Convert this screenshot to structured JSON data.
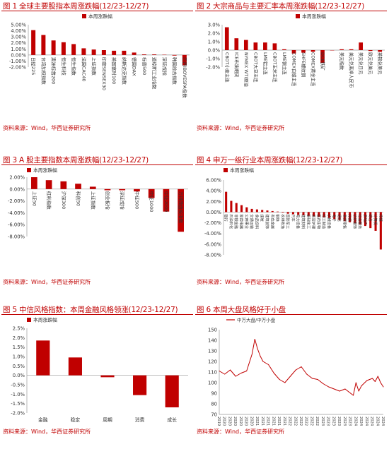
{
  "source_label": "资料来源：Wind，华西证券研究所",
  "colors": {
    "bar": "#c00000",
    "title": "#c00000",
    "line": "#c00000",
    "axis": "#999999"
  },
  "charts": [
    {
      "title": "图 1 全球主要股指本周涨跌幅(12/23-12/27)",
      "chart_data": {
        "type": "bar",
        "legend": "本周涨跌幅",
        "legend_position": "top-center",
        "ylim": [
          -2.0,
          5.0
        ],
        "ytick_step": 1.0,
        "ytick_format": "pct2",
        "categories": [
          "日经225",
          "台湾加权指数",
          "澳洲标普200",
          "恒生科技",
          "恒生指数",
          "法国CAC40",
          "上证指数",
          "印度SENSEX30",
          "英国富时100",
          "纳斯达克指数",
          "德国DAX",
          "标普500",
          "道琼斯工业指数",
          "深证成指",
          "韩国综合指数",
          "巴西IBOVESPA指数"
        ],
        "values": [
          4.1,
          3.3,
          2.4,
          2.1,
          1.8,
          1.1,
          0.9,
          0.8,
          0.7,
          0.7,
          0.4,
          0.1,
          0.1,
          0.05,
          -0.1,
          -1.7
        ]
      }
    },
    {
      "title": "图 2 大宗商品与主要汇率本周涨跌幅(12/23-12/27)",
      "chart_data": {
        "type": "bar",
        "legend": "本周涨跌幅",
        "legend_position": "top-right",
        "ylim": [
          -2.0,
          3.0
        ],
        "ytick_step": 1.0,
        "ytick_format": "pct1",
        "categories": [
          "CBOT小麦主连",
          "ICE布油期货",
          "NYMEX WTI原油",
          "CBOT大豆主连",
          "LME铝主连",
          "CBOT玉米主连",
          "LME铜主连",
          "COMEX白银主连",
          "SHFE螺纹钢",
          "COMEX黄金主连",
          "DCE铁矿",
          "",
          "美元指数",
          "美元兑离岸人民币",
          "美元兑日元",
          "欧元兑美元",
          "英镑兑美元"
        ],
        "values": [
          2.7,
          1.4,
          1.2,
          0.9,
          0.9,
          0.8,
          0.1,
          -0.4,
          -0.3,
          -0.2,
          -1.5,
          0,
          0.1,
          0.1,
          0.9,
          -0.1,
          -0.2
        ]
      }
    },
    {
      "title": "图 3 A 股主要指数本周涨跌幅(12/23-12/27)",
      "chart_data": {
        "type": "bar",
        "legend": "本周涨跌幅",
        "legend_position": "top-left",
        "ylim": [
          -8.0,
          2.0
        ],
        "ytick_step": 2.0,
        "ytick_format": "pct2",
        "categories": [
          "上证50",
          "红利指数",
          "沪深300",
          "科创50",
          "上证指数",
          "创业板指",
          "深证成指",
          "中证500",
          "中证1000",
          "中证2000",
          "万得微盘股指数"
        ],
        "values": [
          2.0,
          1.5,
          1.3,
          0.9,
          0.4,
          -0.2,
          -0.2,
          -0.4,
          -1.5,
          -3.8,
          -7.2
        ]
      }
    },
    {
      "title": "图 4 申万一级行业本周涨跌幅(12/23-12/27)",
      "chart_data": {
        "type": "bar",
        "legend": "本周涨跌幅",
        "legend_position": "top-left",
        "ylim": [
          -8.0,
          6.0
        ],
        "ytick_step": 2.0,
        "ytick_format": "pct2",
        "categories": [
          "银行",
          "石油石化",
          "非银金融",
          "家用电器",
          "公用事业",
          "交通运输",
          "食品饮料",
          "煤炭",
          "建筑装饰",
          "有色金属",
          "钢铁",
          "农林牧渔",
          "国防军工",
          "汽车",
          "电力设备",
          "建筑材料",
          "基础化工",
          "美容护理",
          "医药生物",
          "轻工制造",
          "机械设备",
          "电子",
          "通信",
          "商贸零售",
          "环保",
          "纺织服饰",
          "社会服务",
          "房地产",
          "综合",
          "计算机",
          "传媒"
        ],
        "values": [
          3.8,
          2.1,
          1.7,
          1.3,
          0.9,
          0.6,
          0.5,
          0.4,
          0.3,
          0.2,
          0.1,
          -0.1,
          -0.3,
          -0.4,
          -0.5,
          -0.6,
          -0.7,
          -0.8,
          -0.9,
          -1.0,
          -1.1,
          -1.3,
          -1.5,
          -1.7,
          -1.9,
          -2.1,
          -2.3,
          -2.6,
          -3.0,
          -3.5,
          -7.0
        ]
      }
    },
    {
      "title": "图 5 中信风格指数：本周金融风格领涨(12/23-12/27)",
      "chart_data": {
        "type": "bar",
        "legend": "本周涨跌幅",
        "legend_position": "top-left",
        "ylim": [
          -2.0,
          2.5
        ],
        "ytick_step": 0.5,
        "ytick_format": "pct1",
        "categories": [
          "金融",
          "稳定",
          "周期",
          "消费",
          "成长"
        ],
        "values": [
          1.85,
          0.95,
          -0.1,
          -1.05,
          -1.7
        ]
      }
    },
    {
      "title": "图 6 本周大盘风格好于小盘",
      "chart_data": {
        "type": "line",
        "legend": "中万大盘/中万小盘",
        "legend_position": "top-left",
        "ylim": [
          70,
          150
        ],
        "ytick_step": 10,
        "xticks": [
          "2019-12",
          "2020-02",
          "2020-04",
          "2020-06",
          "2020-08",
          "2020-10",
          "2020-12",
          "2021-02",
          "2021-04",
          "2021-06",
          "2021-08",
          "2021-10",
          "2021-12",
          "2022-02",
          "2022-04",
          "2022-06",
          "2022-08",
          "2022-10",
          "2022-12",
          "2023-02",
          "2023-04",
          "2023-06",
          "2023-08",
          "2023-10",
          "2023-12",
          "2024-02",
          "2024-04",
          "2024-06",
          "2024-08",
          "2024-10",
          "2024-12"
        ],
        "series": [
          {
            "x": [
              "2019-12",
              "2020-02",
              "2020-04",
              "2020-06",
              "2020-08",
              "2020-10",
              "2020-12",
              "2021-01",
              "2021-02",
              "2021-03",
              "2021-04",
              "2021-06",
              "2021-08",
              "2021-10",
              "2021-12",
              "2022-02",
              "2022-04",
              "2022-06",
              "2022-08",
              "2022-10",
              "2022-12",
              "2023-02",
              "2023-04",
              "2023-06",
              "2023-08",
              "2023-10",
              "2023-12",
              "2024-01",
              "2024-02",
              "2024-03",
              "2024-04",
              "2024-06",
              "2024-08",
              "2024-09",
              "2024-10",
              "2024-11",
              "2024-12"
            ],
            "values": [
              111,
              108,
              112,
              106,
              109,
              111,
              127,
              141,
              132,
              125,
              120,
              117,
              109,
              103,
              100,
              106,
              112,
              115,
              108,
              104,
              103,
              99,
              96,
              94,
              92,
              94,
              90,
              88,
              100,
              92,
              97,
              102,
              104,
              101,
              106,
              100,
              96
            ]
          }
        ]
      }
    }
  ]
}
